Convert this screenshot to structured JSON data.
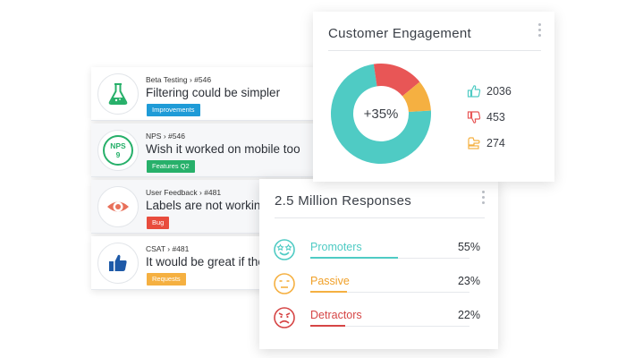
{
  "colors": {
    "teal": "#4fcbc4",
    "green": "#27b06a",
    "red": "#e85656",
    "orange": "#f5b041",
    "blue": "#1f9bd7",
    "navy": "#1e5aa8"
  },
  "feedback": [
    {
      "source": "Beta Testing › #546",
      "text": "Filtering could be simpler",
      "tag": "Improvements",
      "tag_color": "#1f9bd7",
      "icon": "flask-icon"
    },
    {
      "source": "NPS › #546",
      "text": "Wish it worked on mobile too",
      "tag": "Features Q2",
      "tag_color": "#27b06a",
      "icon": "nps-badge-icon",
      "icon_text": [
        "NPS",
        "9"
      ]
    },
    {
      "source": "User Feedback › #481",
      "text": "Labels are not working",
      "tag": "Bug",
      "tag_color": "#e84c3d",
      "icon": "eye-icon"
    },
    {
      "source": "CSAT › #481",
      "text": "It would be great if the",
      "tag": "Requests",
      "tag_color": "#f5b041",
      "icon": "thumbs-up-icon"
    }
  ],
  "engagement": {
    "title": "Customer Engagement",
    "center_label": "+35%",
    "chart_data": {
      "type": "pie",
      "categories": [
        "Likes",
        "Dislikes",
        "Neutral"
      ],
      "values": [
        2036,
        453,
        274
      ],
      "colors": [
        "#4fcbc4",
        "#e85656",
        "#f5b041"
      ]
    },
    "stats": [
      {
        "icon": "thumbs-up-icon",
        "value": "2036",
        "color": "#4fcbc4"
      },
      {
        "icon": "thumbs-down-icon",
        "value": "453",
        "color": "#e85656"
      },
      {
        "icon": "thumbs-sideways-icon",
        "value": "274",
        "color": "#f5b041"
      }
    ]
  },
  "responses": {
    "title": "2.5 Million Responses",
    "rows": [
      {
        "label": "Promoters",
        "value": "55%",
        "fraction": 0.55,
        "color": "#4fcbc4",
        "icon": "star-eyes-face-icon"
      },
      {
        "label": "Passive",
        "value": "23%",
        "fraction": 0.23,
        "color": "#f5b041",
        "icon": "neutral-face-icon"
      },
      {
        "label": "Detractors",
        "value": "22%",
        "fraction": 0.22,
        "color": "#d64545",
        "icon": "angry-face-icon"
      }
    ]
  }
}
